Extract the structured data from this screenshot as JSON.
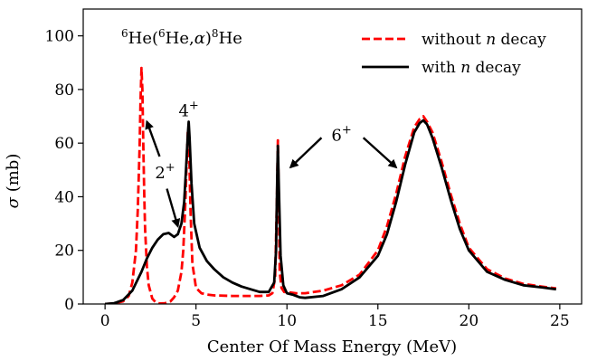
{
  "chart_data": {
    "type": "line",
    "title": "",
    "reaction_label": {
      "part1": "6",
      "part2": "He(",
      "part3": "6",
      "part4": "He,",
      "part5": "α",
      "part6": ")",
      "part7": "8",
      "part8": "He"
    },
    "xlabel": "Center Of Mass Energy (MeV)",
    "ylabel_symbol": "σ",
    "ylabel_unit": "(mb)",
    "xlim": [
      -1.2,
      26.2
    ],
    "ylim": [
      0,
      110
    ],
    "xticks": [
      0,
      5,
      10,
      15,
      20,
      25
    ],
    "yticks": [
      0,
      20,
      40,
      60,
      80,
      100
    ],
    "legend": {
      "position": "top-right",
      "entries": [
        {
          "prefix": "without ",
          "italic": "n",
          "suffix": " decay",
          "style": "dashed",
          "color": "#ff0000"
        },
        {
          "prefix": "with ",
          "italic": "n",
          "suffix": " decay",
          "style": "solid",
          "color": "#000000"
        }
      ]
    },
    "annotations": [
      {
        "base": "2",
        "sup": "+",
        "x": 3.3,
        "y": 49
      },
      {
        "base": "4",
        "sup": "+",
        "x": 4.6,
        "y": 72
      },
      {
        "base": "6",
        "sup": "+",
        "x": 13.0,
        "y": 63
      }
    ],
    "arrows": [
      {
        "from": [
          3.0,
          55
        ],
        "to": [
          2.3,
          68
        ]
      },
      {
        "from": [
          3.4,
          43
        ],
        "to": [
          4.0,
          29
        ]
      },
      {
        "from": [
          11.9,
          62
        ],
        "to": [
          10.2,
          51
        ]
      },
      {
        "from": [
          14.2,
          62
        ],
        "to": [
          16.0,
          51
        ]
      }
    ],
    "series": [
      {
        "name": "without n decay",
        "color": "#ff0000",
        "dashed": true,
        "x": [
          0,
          0.5,
          1.0,
          1.3,
          1.5,
          1.7,
          1.8,
          1.9,
          1.95,
          2.0,
          2.05,
          2.1,
          2.15,
          2.2,
          2.3,
          2.4,
          2.6,
          2.8,
          3.0,
          3.3,
          3.6,
          3.8,
          4.0,
          4.2,
          4.3,
          4.4,
          4.5,
          4.55,
          4.6,
          4.65,
          4.7,
          4.8,
          5.0,
          5.3,
          5.6,
          6.0,
          7.0,
          8.0,
          8.5,
          9.0,
          9.2,
          9.35,
          9.45,
          9.5,
          9.55,
          9.6,
          9.7,
          9.85,
          10.0,
          10.5,
          11,
          12,
          13,
          14,
          15,
          15.5,
          16,
          16.5,
          17,
          17.3,
          17.5,
          17.7,
          18,
          18.5,
          19,
          19.5,
          20,
          21,
          22,
          23,
          24,
          24.8
        ],
        "y": [
          0,
          0.2,
          1.0,
          3,
          8,
          20,
          35,
          58,
          75,
          88,
          80,
          60,
          42,
          28,
          14,
          7,
          2,
          0.5,
          0.2,
          0.3,
          1.0,
          2.5,
          5,
          12,
          20,
          35,
          55,
          64,
          66,
          50,
          35,
          15,
          6,
          4,
          3.5,
          3.2,
          3.0,
          3.0,
          3.0,
          3.2,
          4.0,
          10,
          40,
          61,
          40,
          12,
          6,
          4.5,
          4.5,
          4.0,
          4.0,
          5,
          7,
          11,
          20,
          29,
          41,
          55,
          66,
          69,
          70,
          68,
          64,
          53,
          41,
          30,
          21,
          13,
          9.5,
          7.5,
          6.5,
          5.8
        ]
      },
      {
        "name": "with n decay",
        "color": "#000000",
        "dashed": false,
        "x": [
          0,
          0.5,
          1.0,
          1.5,
          2.0,
          2.3,
          2.6,
          2.9,
          3.2,
          3.5,
          3.8,
          4.0,
          4.2,
          4.35,
          4.45,
          4.55,
          4.6,
          4.65,
          4.75,
          4.9,
          5.2,
          5.6,
          6.0,
          6.5,
          7.0,
          7.5,
          8.0,
          8.5,
          9.0,
          9.3,
          9.4,
          9.47,
          9.5,
          9.55,
          9.65,
          9.8,
          10.0,
          10.3,
          10.7,
          11.0,
          12,
          13,
          14,
          15,
          15.5,
          16,
          16.5,
          17,
          17.3,
          17.5,
          17.7,
          18,
          18.5,
          19,
          19.5,
          20,
          21,
          22,
          23,
          24,
          24.8
        ],
        "y": [
          0,
          0.3,
          1.5,
          5,
          12,
          17,
          21,
          24,
          26,
          26.5,
          25,
          26,
          30,
          38,
          50,
          63,
          68,
          62,
          45,
          30,
          21,
          16,
          13,
          10,
          8,
          6.5,
          5.5,
          4.5,
          4.5,
          8,
          20,
          50,
          59,
          45,
          18,
          7,
          4,
          3.5,
          2.5,
          2.3,
          3,
          5.5,
          10,
          18,
          26,
          38,
          52,
          64,
          67.5,
          68.5,
          67,
          62,
          51,
          39,
          28,
          20,
          12,
          9,
          7,
          6.2,
          5.5
        ]
      }
    ]
  }
}
